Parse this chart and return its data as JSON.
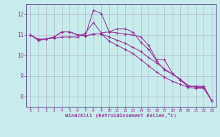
{
  "title": "",
  "xlabel": "Windchill (Refroidissement éolien,°C)",
  "ylabel": "",
  "bg_color": "#c8ecec",
  "grid_color": "#aaaacc",
  "line_color": "#993399",
  "marker_color": "#993399",
  "border_color": "#666699",
  "xlim": [
    -0.5,
    23.5
  ],
  "ylim": [
    7.5,
    12.5
  ],
  "xticks": [
    0,
    1,
    2,
    3,
    4,
    5,
    6,
    7,
    8,
    9,
    10,
    11,
    12,
    13,
    14,
    15,
    16,
    17,
    18,
    19,
    20,
    21,
    22,
    23
  ],
  "yticks": [
    8,
    9,
    10,
    11,
    12
  ],
  "series": [
    [
      11.0,
      10.8,
      10.8,
      10.85,
      10.9,
      10.9,
      10.9,
      11.1,
      11.6,
      11.1,
      11.15,
      11.1,
      11.05,
      11.0,
      10.9,
      10.5,
      9.8,
      9.8,
      9.15,
      8.8,
      8.5,
      8.5,
      8.5,
      7.8
    ],
    [
      11.0,
      10.75,
      10.8,
      10.9,
      11.15,
      11.15,
      11.0,
      11.0,
      12.2,
      12.05,
      11.15,
      11.3,
      11.3,
      11.15,
      10.65,
      10.3,
      9.75,
      9.3,
      9.1,
      8.85,
      8.5,
      8.5,
      8.5,
      7.8
    ],
    [
      11.0,
      10.75,
      10.8,
      10.9,
      11.15,
      11.15,
      11.0,
      10.95,
      11.05,
      11.05,
      10.9,
      10.75,
      10.6,
      10.4,
      10.2,
      9.9,
      9.65,
      9.35,
      9.1,
      8.85,
      8.55,
      8.45,
      8.45,
      7.8
    ],
    [
      11.0,
      10.75,
      10.8,
      10.9,
      11.15,
      11.15,
      11.0,
      10.95,
      11.05,
      11.05,
      10.7,
      10.5,
      10.3,
      10.1,
      9.8,
      9.5,
      9.2,
      8.95,
      8.75,
      8.6,
      8.45,
      8.4,
      8.4,
      7.8
    ]
  ]
}
